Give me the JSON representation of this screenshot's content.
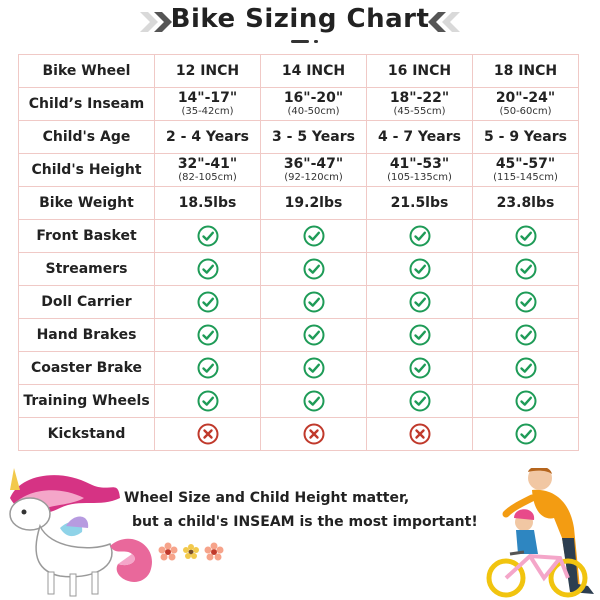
{
  "title": "Bike Sizing Chart",
  "colors": {
    "check_green": "#1e9b57",
    "cross_red": "#c0392b",
    "border": "#f0c9c6"
  },
  "table": {
    "header": {
      "label": "Bike Wheel",
      "sizes": [
        "12 INCH",
        "14 INCH",
        "16 INCH",
        "18 INCH"
      ]
    },
    "inseam": {
      "label": "Child’s Inseam",
      "values": [
        {
          "main": "14\"-17\"",
          "sub": "(35-42cm)"
        },
        {
          "main": "16\"-20\"",
          "sub": "(40-50cm)"
        },
        {
          "main": "18\"-22\"",
          "sub": "(45-55cm)"
        },
        {
          "main": "20\"-24\"",
          "sub": "(50-60cm)"
        }
      ]
    },
    "age": {
      "label": "Child's Age",
      "values": [
        "2 - 4 Years",
        "3 - 5 Years",
        "4 - 7 Years",
        "5 - 9 Years"
      ]
    },
    "height": {
      "label": "Child's Height",
      "values": [
        {
          "main": "32\"-41\"",
          "sub": "(82-105cm)"
        },
        {
          "main": "36\"-47\"",
          "sub": "(92-120cm)"
        },
        {
          "main": "41\"-53\"",
          "sub": "(105-135cm)"
        },
        {
          "main": "45\"-57\"",
          "sub": "(115-145cm)"
        }
      ]
    },
    "weight": {
      "label": "Bike Weight",
      "values": [
        "18.5lbs",
        "19.2lbs",
        "21.5lbs",
        "23.8lbs"
      ]
    },
    "features": [
      {
        "label": "Front Basket",
        "values": [
          "check",
          "check",
          "check",
          "check"
        ]
      },
      {
        "label": "Streamers",
        "values": [
          "check",
          "check",
          "check",
          "check"
        ]
      },
      {
        "label": "Doll Carrier",
        "values": [
          "check",
          "check",
          "check",
          "check"
        ]
      },
      {
        "label": "Hand Brakes",
        "values": [
          "check",
          "check",
          "check",
          "check"
        ]
      },
      {
        "label": "Coaster Brake",
        "values": [
          "check",
          "check",
          "check",
          "check"
        ]
      },
      {
        "label": "Training Wheels",
        "values": [
          "check",
          "check",
          "check",
          "check"
        ]
      },
      {
        "label": "Kickstand",
        "values": [
          "cross",
          "cross",
          "cross",
          "check"
        ]
      }
    ]
  },
  "note": {
    "line1": "Wheel Size and Child Height matter,",
    "line2": "but a child's INSEAM is the most important!"
  }
}
